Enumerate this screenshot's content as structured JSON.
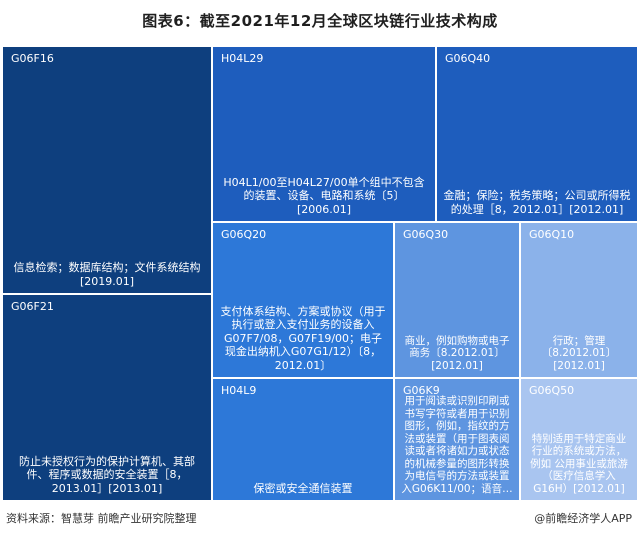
{
  "title": "图表6：截至2021年12月全球区块链行业技术构成",
  "chart_data": {
    "type": "treemap",
    "tiles": [
      {
        "code": "G06F16",
        "desc": "信息检索；数据库结构；文件系统结构[2019.01]",
        "color": "#0e3f7e"
      },
      {
        "code": "G06F21",
        "desc": "防止未授权行为的保护计算机、其部件、程序或数据的安全装置［8，2013.01］[2013.01]",
        "color": "#0e3f7e"
      },
      {
        "code": "H04L29",
        "desc": "H04L1/00至H04L27/00单个组中不包含的装置、设备、电路和系统〔5〕[2006.01]",
        "color": "#1e5dbd"
      },
      {
        "code": "G06Q40",
        "desc": "金融；保险；税务策略；公司或所得税的处理［8，2012.01］[2012.01]",
        "color": "#1e5dbd"
      },
      {
        "code": "G06Q20",
        "desc": "支付体系结构、方案或协议（用于执行或登入支付业务的设备入G07F7/08，G07F19/00；电子现金出纳机入G07G1/12）〔8，2012.01〕",
        "color": "#2d78d8"
      },
      {
        "code": "H04L9",
        "desc": "保密或安全通信装置",
        "color": "#2d78d8"
      },
      {
        "code": "G06Q30",
        "desc": "商业，例如购物或电子商务〔8.2012.01〕[2012.01]",
        "color": "#5e95e0"
      },
      {
        "code": "G06K9",
        "desc": "用于阅读或识别印刷或书写字符或者用于识别图形，例如，指纹的方法或装置（用于图表阅读或者将诸如力或状态的机械参量的图形转换为电信号的方法或装置入G06K11/00；语音…",
        "color": "#5e95e0"
      },
      {
        "code": "G06Q10",
        "desc": "行政；管理〔8.2012.01〕[2012.01]",
        "color": "#8bb2ea"
      },
      {
        "code": "G06Q50",
        "desc": "特别适用于特定商业行业的系统或方法，例如 公用事业或旅游（医疗信息学入G16H）[2012.01]",
        "color": "#a9c5f0"
      }
    ]
  },
  "footer": {
    "source": "资料来源：智慧芽 前瞻产业研究院整理",
    "brand": "@前瞻经济学人APP"
  }
}
